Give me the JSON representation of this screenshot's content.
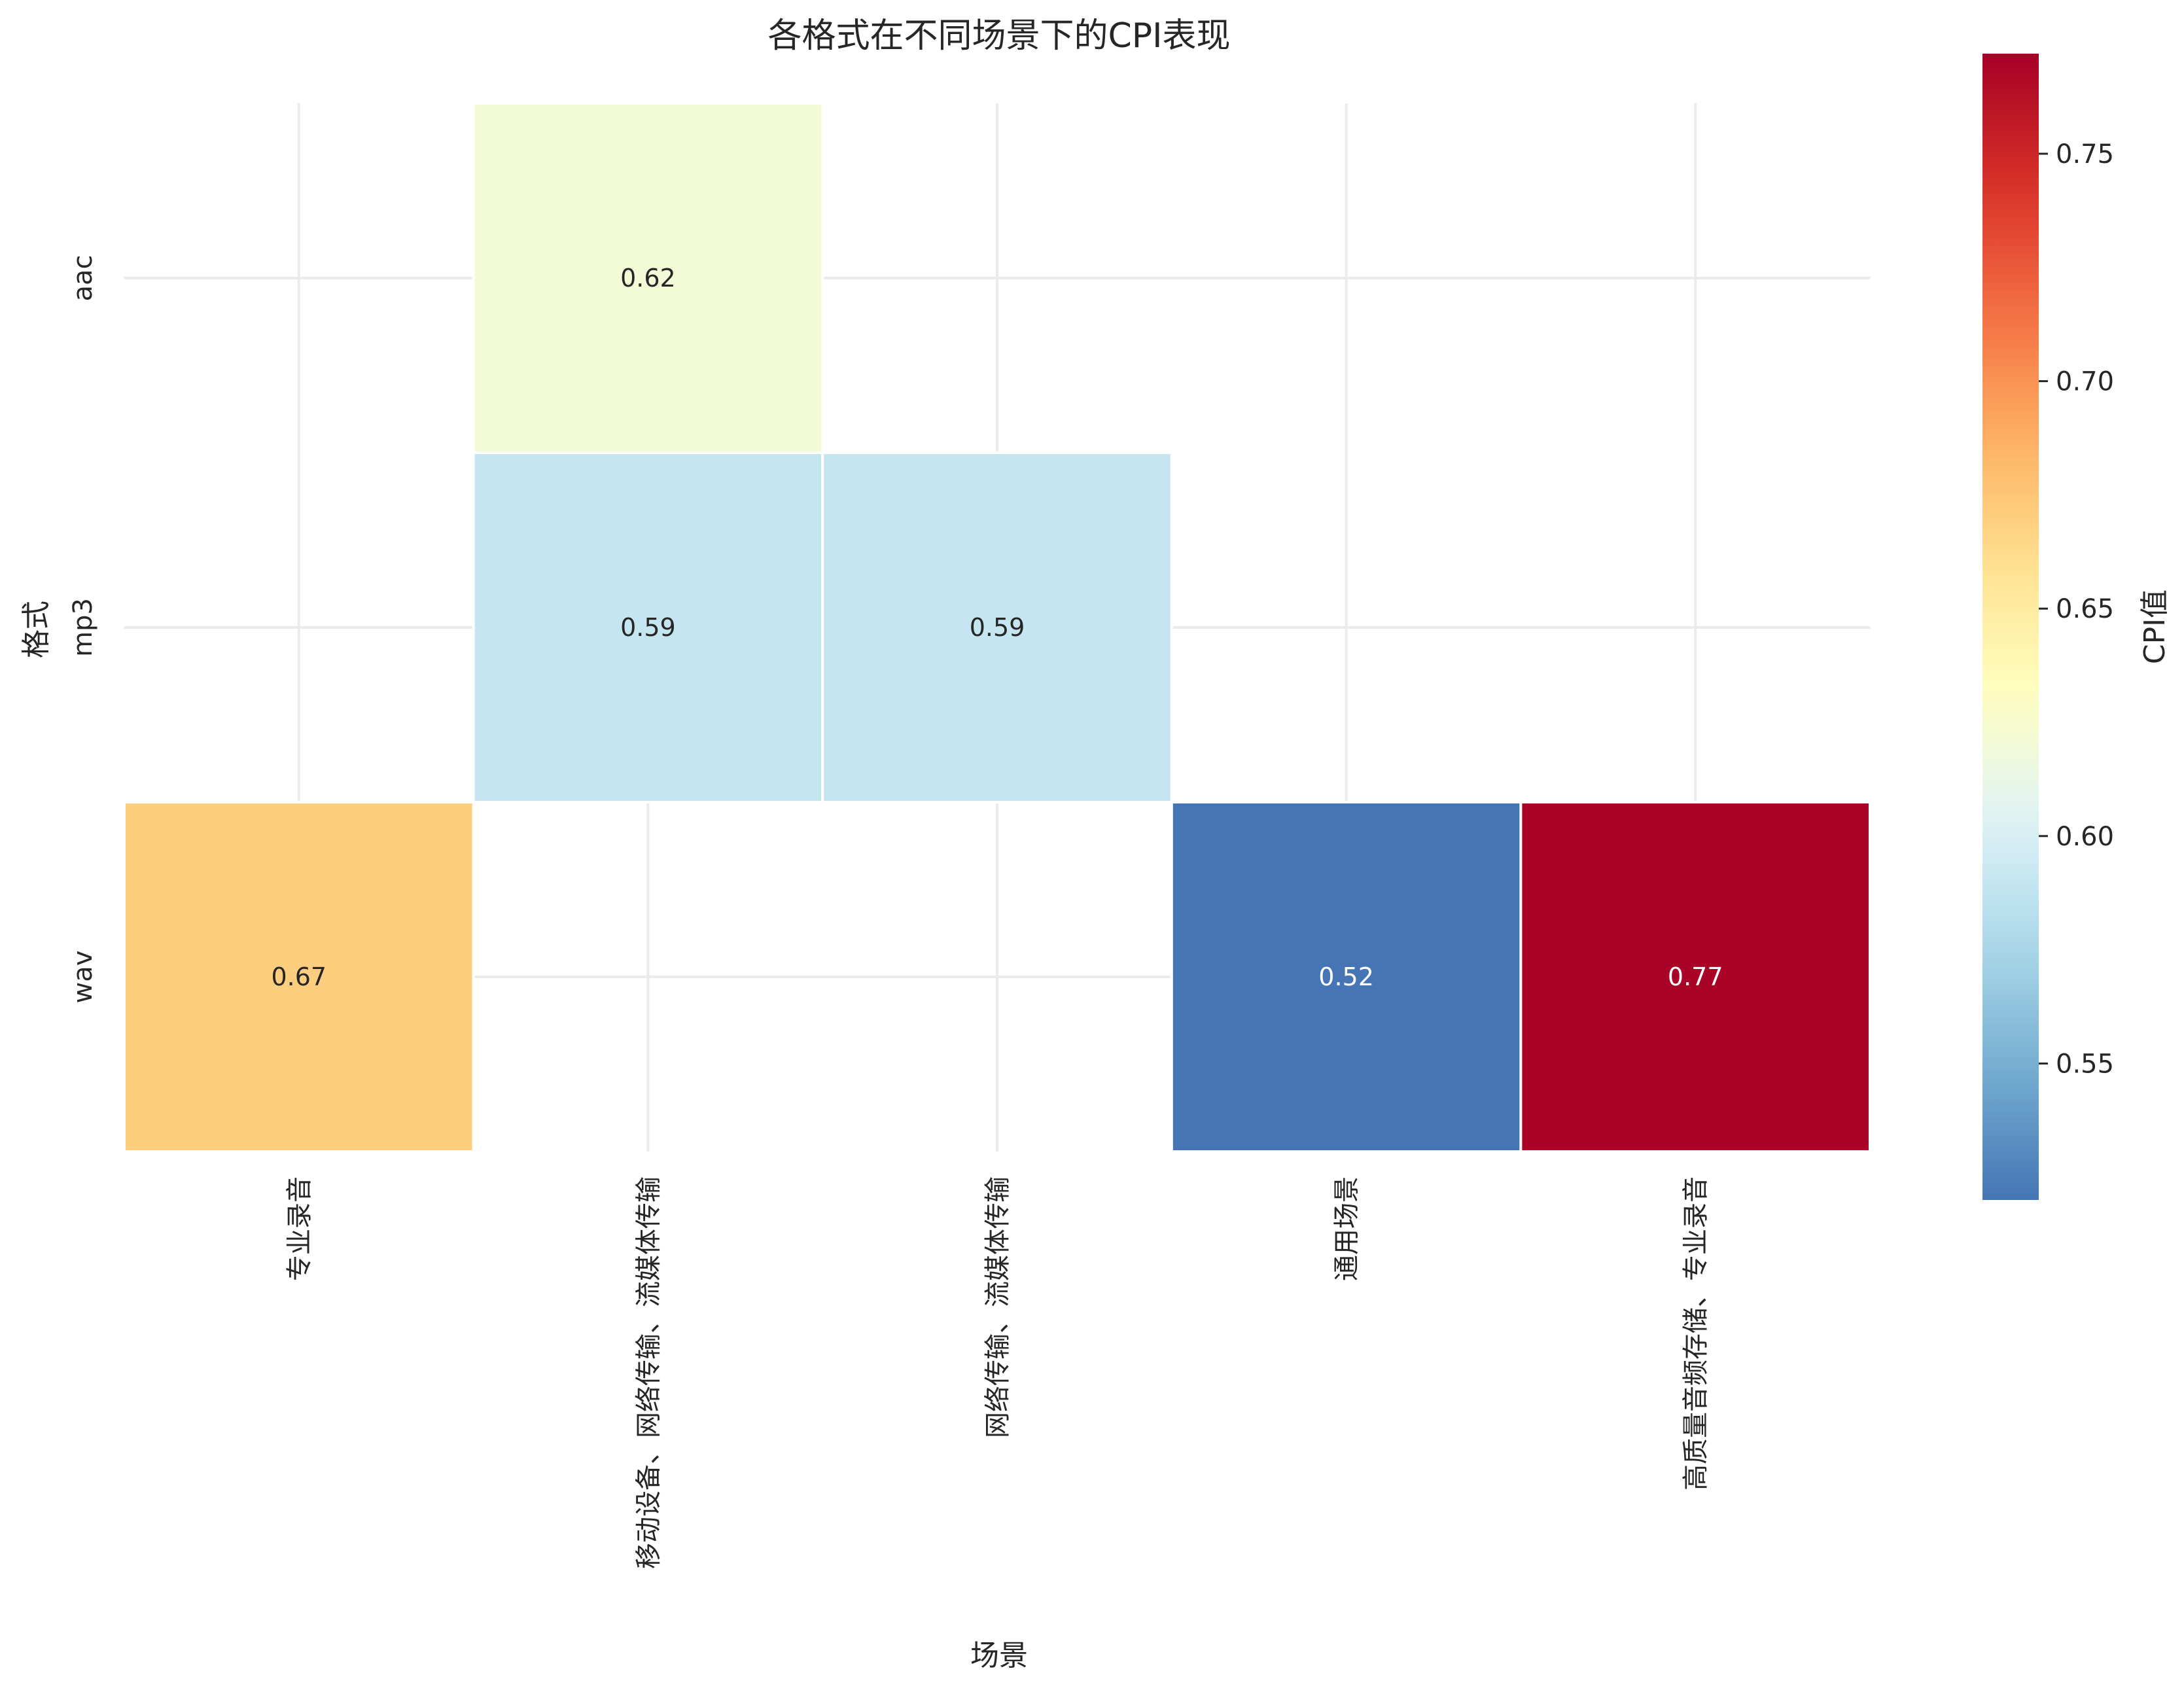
{
  "chart_data": {
    "type": "heatmap",
    "title": "各格式在不同场景下的CPI表现",
    "xlabel": "场景",
    "ylabel": "格式",
    "x_categories": [
      "专业录音",
      "移动设备、网络传输、流媒体传输",
      "网络传输、流媒体传输",
      "通用场景",
      "高质量音频存储、专业录音"
    ],
    "y_categories": [
      "aac",
      "mp3",
      "wav"
    ],
    "values": [
      [
        null,
        0.62,
        null,
        null,
        null
      ],
      [
        null,
        0.59,
        0.59,
        null,
        null
      ],
      [
        0.67,
        null,
        null,
        0.52,
        0.77
      ]
    ],
    "value_labels": [
      [
        null,
        "0.62",
        null,
        null,
        null
      ],
      [
        null,
        "0.59",
        "0.59",
        null,
        null
      ],
      [
        "0.67",
        null,
        null,
        "0.52",
        "0.77"
      ]
    ],
    "colorbar": {
      "label": "CPI值",
      "vmin": 0.52,
      "vmax": 0.772,
      "ticks": [
        0.55,
        0.6,
        0.65,
        0.7,
        0.75
      ],
      "tick_labels": [
        "0.55",
        "0.60",
        "0.65",
        "0.70",
        "0.75"
      ],
      "colormap": "RdYlBu_r",
      "colormap_stops": [
        "#313695",
        "#4575b4",
        "#74add1",
        "#abd9e9",
        "#e0f3f8",
        "#ffffbf",
        "#fee090",
        "#fdae61",
        "#f46d43",
        "#d73027",
        "#a50026"
      ]
    },
    "grid": true
  }
}
